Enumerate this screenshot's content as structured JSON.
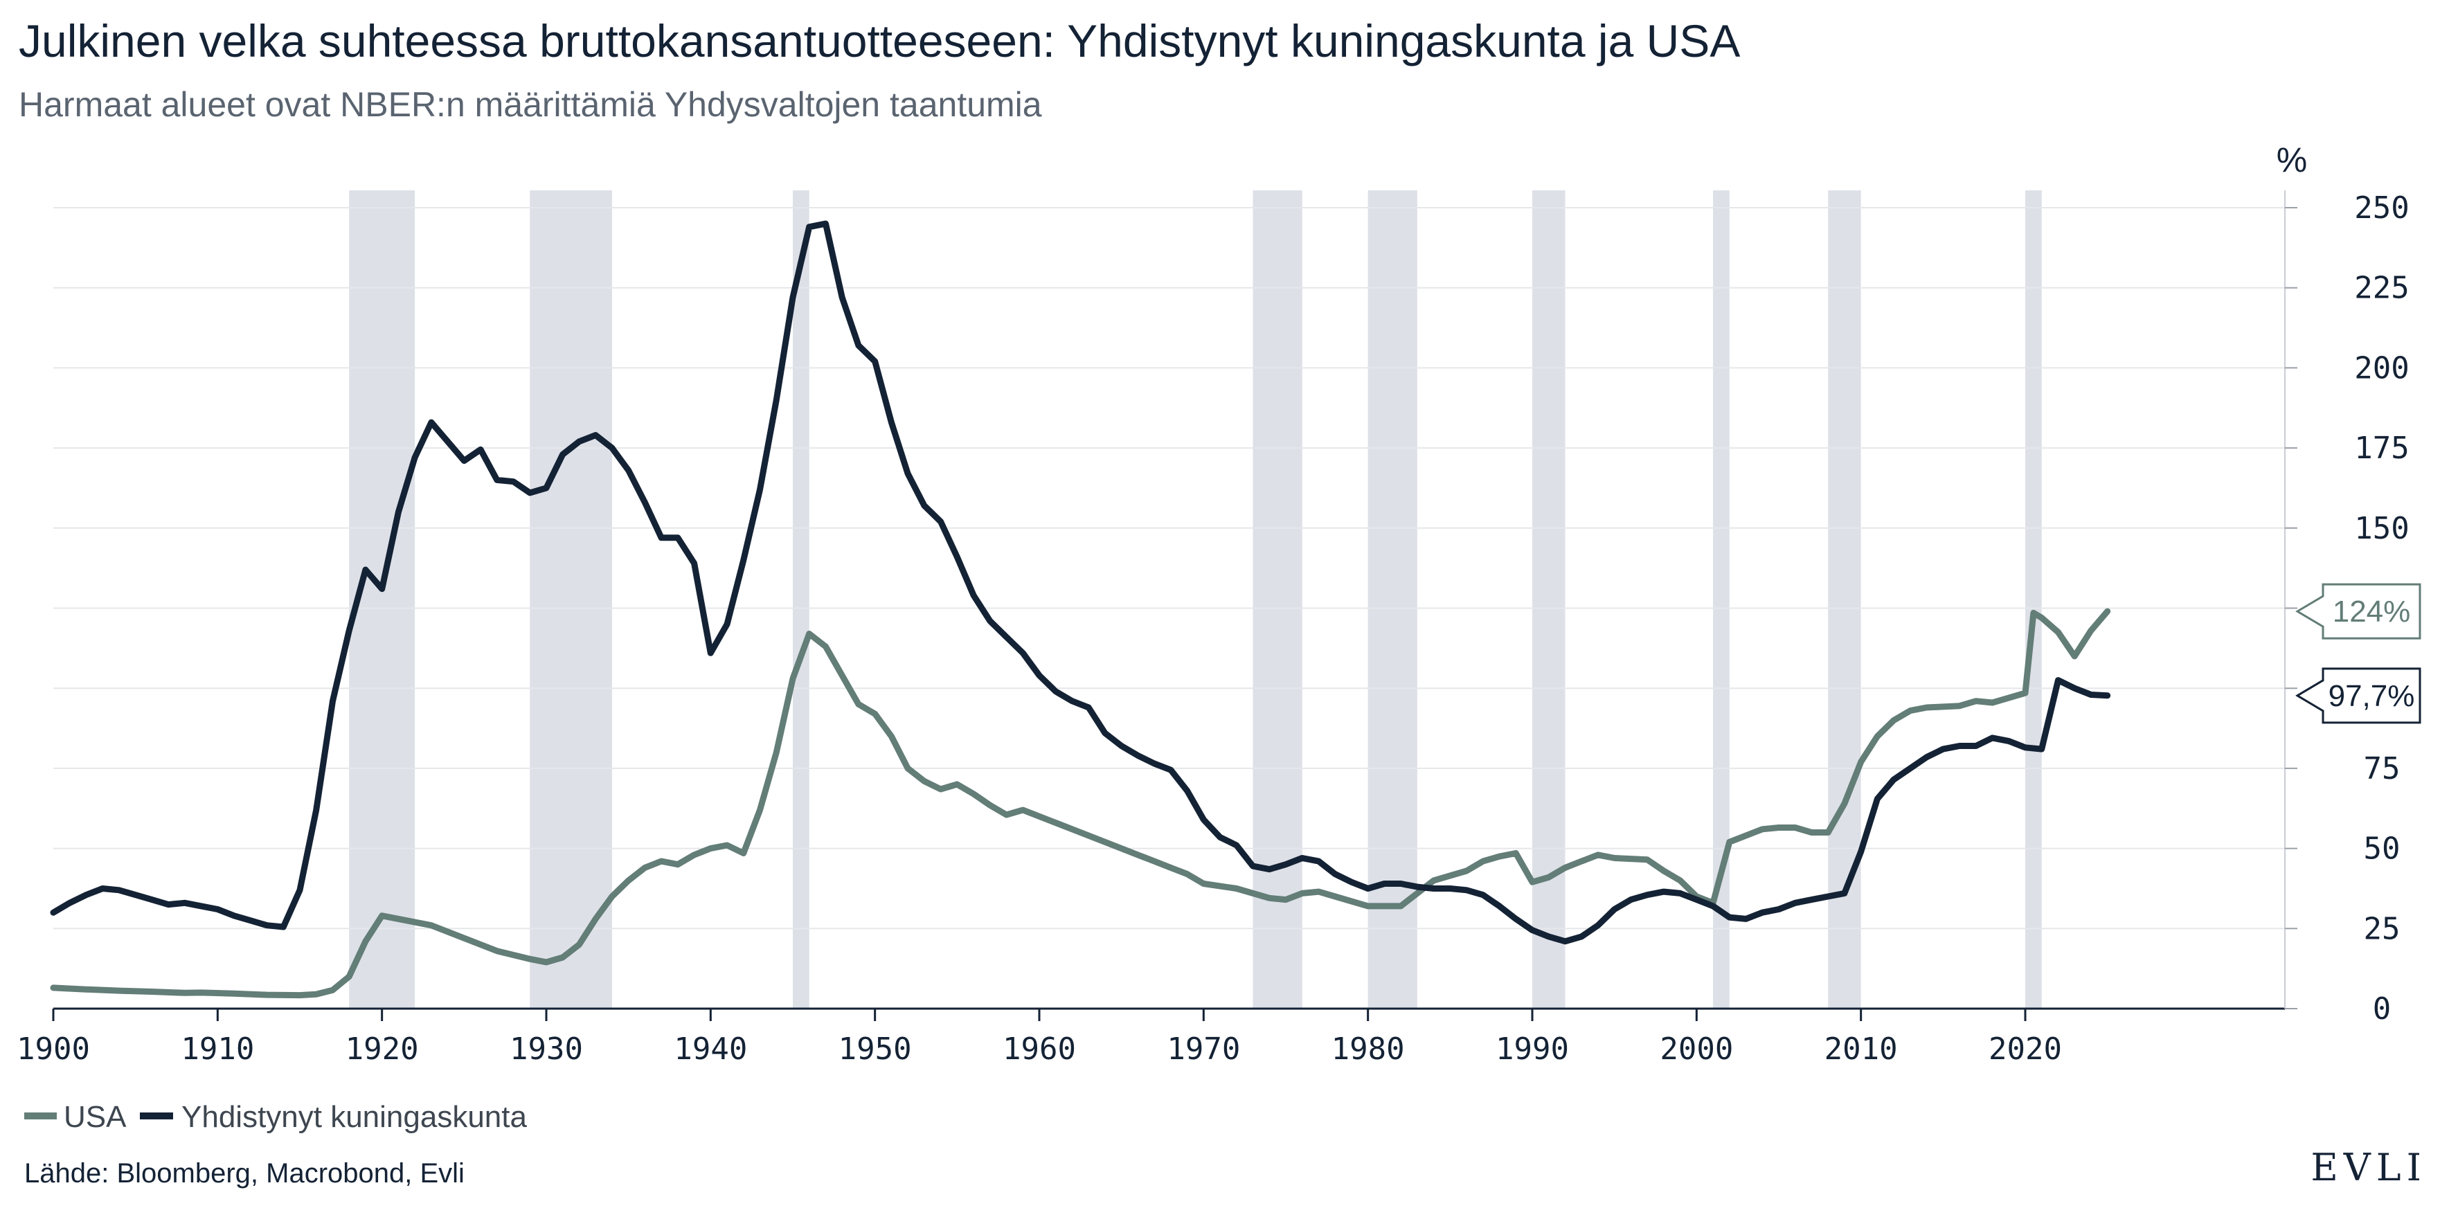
{
  "header": {
    "title": "Julkinen velka suhteessa bruttokansantuotteeseen: Yhdistynyt kuningaskunta ja USA",
    "subtitle": "Harmaat alueet ovat NBER:n määrittämiä Yhdysvaltojen taantumia"
  },
  "footer": {
    "source": "Lähde: Bloomberg, Macrobond, Evli",
    "logo": "EVLI"
  },
  "colors": {
    "usa": "#637d77",
    "uk": "#142235",
    "recession": "#dde0e7",
    "grid": "#e6e7ea",
    "axis": "#142235"
  },
  "chart_data": {
    "type": "line",
    "ylabel": "%",
    "xlim": [
      1900,
      2026
    ],
    "ylim": [
      0,
      250
    ],
    "x_ticks": [
      1900,
      1910,
      1920,
      1930,
      1940,
      1950,
      1960,
      1970,
      1980,
      1990,
      2000,
      2010,
      2020
    ],
    "y_ticks": [
      0,
      25,
      50,
      75,
      100,
      125,
      150,
      175,
      200,
      225,
      250
    ],
    "y_axis_position": "right",
    "grid": true,
    "legend_position": "bottom-left",
    "recessions": [
      [
        1918,
        1922
      ],
      [
        1929,
        1934
      ],
      [
        1945,
        1946
      ],
      [
        1973,
        1976
      ],
      [
        1980,
        1983
      ],
      [
        1990,
        1992
      ],
      [
        2001,
        2002
      ],
      [
        2008,
        2010
      ],
      [
        2020,
        2021
      ]
    ],
    "end_labels": [
      {
        "series": "USA",
        "text": "124%",
        "value": 124
      },
      {
        "series": "Yhdistynyt kuningaskunta",
        "text": "97,7%",
        "value": 97.7
      }
    ],
    "series": [
      {
        "name": "USA",
        "key": "usa",
        "points": [
          [
            1900,
            6.5
          ],
          [
            1902,
            6
          ],
          [
            1904,
            5.6
          ],
          [
            1906,
            5.3
          ],
          [
            1908,
            4.9
          ],
          [
            1909,
            5
          ],
          [
            1911,
            4.7
          ],
          [
            1913,
            4.3
          ],
          [
            1915,
            4.2
          ],
          [
            1916,
            4.5
          ],
          [
            1917,
            5.8
          ],
          [
            1918,
            10
          ],
          [
            1919,
            21
          ],
          [
            1920,
            29
          ],
          [
            1921,
            28
          ],
          [
            1923,
            26
          ],
          [
            1925,
            22
          ],
          [
            1927,
            18
          ],
          [
            1929,
            15.5
          ],
          [
            1930,
            14.5
          ],
          [
            1931,
            16
          ],
          [
            1932,
            20
          ],
          [
            1933,
            28
          ],
          [
            1934,
            35
          ],
          [
            1935,
            40
          ],
          [
            1936,
            44
          ],
          [
            1937,
            46
          ],
          [
            1938,
            45
          ],
          [
            1939,
            48
          ],
          [
            1940,
            50
          ],
          [
            1941,
            51
          ],
          [
            1942,
            48.5
          ],
          [
            1943,
            62
          ],
          [
            1944,
            80
          ],
          [
            1945,
            103
          ],
          [
            1946,
            117
          ],
          [
            1947,
            113
          ],
          [
            1948,
            104
          ],
          [
            1949,
            95
          ],
          [
            1950,
            92
          ],
          [
            1951,
            85
          ],
          [
            1952,
            75
          ],
          [
            1953,
            71
          ],
          [
            1954,
            68.5
          ],
          [
            1955,
            70
          ],
          [
            1956,
            67
          ],
          [
            1957,
            63.5
          ],
          [
            1958,
            60.5
          ],
          [
            1959,
            62
          ],
          [
            1960,
            60
          ],
          [
            1962,
            56
          ],
          [
            1964,
            52
          ],
          [
            1966,
            48
          ],
          [
            1967,
            46
          ],
          [
            1968,
            44
          ],
          [
            1969,
            42
          ],
          [
            1970,
            39
          ],
          [
            1972,
            37.5
          ],
          [
            1974,
            34.5
          ],
          [
            1975,
            34
          ],
          [
            1976,
            36
          ],
          [
            1977,
            36.5
          ],
          [
            1978,
            35
          ],
          [
            1980,
            32
          ],
          [
            1982,
            32
          ],
          [
            1983,
            36
          ],
          [
            1984,
            40
          ],
          [
            1986,
            43
          ],
          [
            1987,
            46
          ],
          [
            1988,
            47.5
          ],
          [
            1989,
            48.5
          ],
          [
            1990,
            39.5
          ],
          [
            1991,
            41
          ],
          [
            1992,
            44
          ],
          [
            1993,
            46
          ],
          [
            1994,
            48
          ],
          [
            1995,
            47
          ],
          [
            1997,
            46.5
          ],
          [
            1998,
            43
          ],
          [
            1999,
            40
          ],
          [
            2000,
            35
          ],
          [
            2001,
            33
          ],
          [
            2002,
            52
          ],
          [
            2003,
            54
          ],
          [
            2004,
            56
          ],
          [
            2005,
            56.5
          ],
          [
            2006,
            56.5
          ],
          [
            2007,
            55
          ],
          [
            2008,
            55
          ],
          [
            2009,
            64
          ],
          [
            2010,
            77
          ],
          [
            2011,
            85
          ],
          [
            2012,
            90
          ],
          [
            2013,
            93
          ],
          [
            2014,
            94
          ],
          [
            2016,
            94.5
          ],
          [
            2017,
            96
          ],
          [
            2018,
            95.5
          ],
          [
            2019,
            97
          ],
          [
            2020,
            98.5
          ],
          [
            2020.5,
            123.5
          ],
          [
            2021,
            122
          ],
          [
            2022,
            117.5
          ],
          [
            2023,
            110
          ],
          [
            2024,
            118
          ],
          [
            2025,
            124
          ]
        ]
      },
      {
        "name": "Yhdistynyt kuningaskunta",
        "key": "uk",
        "points": [
          [
            1900,
            30
          ],
          [
            1901,
            33
          ],
          [
            1902,
            35.5
          ],
          [
            1903,
            37.5
          ],
          [
            1904,
            37
          ],
          [
            1905,
            35.5
          ],
          [
            1906,
            34
          ],
          [
            1907,
            32.5
          ],
          [
            1908,
            33
          ],
          [
            1909,
            32
          ],
          [
            1910,
            31
          ],
          [
            1911,
            29
          ],
          [
            1912,
            27.5
          ],
          [
            1913,
            26
          ],
          [
            1914,
            25.5
          ],
          [
            1915,
            37
          ],
          [
            1916,
            62
          ],
          [
            1917,
            96
          ],
          [
            1918,
            118
          ],
          [
            1919,
            137
          ],
          [
            1920,
            131
          ],
          [
            1921,
            155
          ],
          [
            1922,
            172
          ],
          [
            1923,
            183
          ],
          [
            1924,
            177
          ],
          [
            1925,
            171
          ],
          [
            1926,
            174.5
          ],
          [
            1927,
            165
          ],
          [
            1928,
            164.5
          ],
          [
            1929,
            161
          ],
          [
            1930,
            162.5
          ],
          [
            1931,
            173
          ],
          [
            1932,
            177
          ],
          [
            1933,
            179
          ],
          [
            1934,
            175
          ],
          [
            1935,
            168
          ],
          [
            1936,
            158
          ],
          [
            1937,
            147
          ],
          [
            1938,
            147
          ],
          [
            1939,
            139
          ],
          [
            1940,
            111
          ],
          [
            1941,
            120
          ],
          [
            1942,
            140
          ],
          [
            1943,
            162
          ],
          [
            1944,
            190
          ],
          [
            1945,
            222
          ],
          [
            1946,
            244
          ],
          [
            1947,
            245
          ],
          [
            1948,
            222
          ],
          [
            1949,
            207
          ],
          [
            1950,
            202
          ],
          [
            1951,
            183
          ],
          [
            1952,
            167
          ],
          [
            1953,
            157
          ],
          [
            1954,
            152
          ],
          [
            1955,
            141
          ],
          [
            1956,
            129
          ],
          [
            1957,
            121
          ],
          [
            1958,
            116
          ],
          [
            1959,
            111
          ],
          [
            1960,
            104
          ],
          [
            1961,
            99
          ],
          [
            1962,
            96
          ],
          [
            1963,
            94
          ],
          [
            1964,
            86
          ],
          [
            1965,
            82
          ],
          [
            1966,
            79
          ],
          [
            1967,
            76.5
          ],
          [
            1968,
            74.5
          ],
          [
            1969,
            68
          ],
          [
            1970,
            59
          ],
          [
            1971,
            53.5
          ],
          [
            1972,
            51
          ],
          [
            1973,
            44.5
          ],
          [
            1974,
            43.5
          ],
          [
            1975,
            45
          ],
          [
            1976,
            47
          ],
          [
            1977,
            46
          ],
          [
            1978,
            42
          ],
          [
            1979,
            39.5
          ],
          [
            1980,
            37.5
          ],
          [
            1981,
            39
          ],
          [
            1982,
            39
          ],
          [
            1983,
            38
          ],
          [
            1984,
            37.5
          ],
          [
            1985,
            37.5
          ],
          [
            1986,
            37
          ],
          [
            1987,
            35.5
          ],
          [
            1988,
            32
          ],
          [
            1989,
            28
          ],
          [
            1990,
            24.5
          ],
          [
            1991,
            22.5
          ],
          [
            1992,
            21
          ],
          [
            1993,
            22.5
          ],
          [
            1994,
            26
          ],
          [
            1995,
            31
          ],
          [
            1996,
            34
          ],
          [
            1997,
            35.5
          ],
          [
            1998,
            36.5
          ],
          [
            1999,
            36
          ],
          [
            2000,
            34
          ],
          [
            2001,
            32
          ],
          [
            2002,
            28.5
          ],
          [
            2003,
            28
          ],
          [
            2004,
            30
          ],
          [
            2005,
            31
          ],
          [
            2006,
            33
          ],
          [
            2007,
            34
          ],
          [
            2008,
            35
          ],
          [
            2009,
            36
          ],
          [
            2010,
            49
          ],
          [
            2011,
            65.5
          ],
          [
            2012,
            71.5
          ],
          [
            2013,
            75
          ],
          [
            2014,
            78.5
          ],
          [
            2015,
            81
          ],
          [
            2016,
            82
          ],
          [
            2017,
            82
          ],
          [
            2018,
            84.5
          ],
          [
            2019,
            83.5
          ],
          [
            2020,
            81.5
          ],
          [
            2021,
            81
          ],
          [
            2022,
            102.5
          ],
          [
            2023,
            100
          ],
          [
            2024,
            98
          ],
          [
            2025,
            97.7
          ]
        ]
      }
    ]
  }
}
